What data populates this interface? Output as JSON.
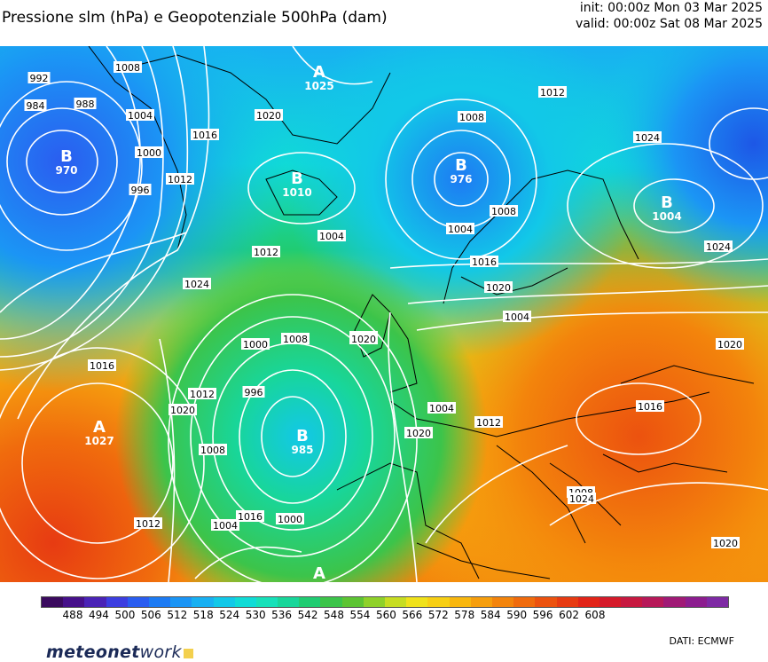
{
  "header": {
    "title": "Pressione slm (hPa) e Geopotenziale 500hPa (dam)",
    "init": "init: 00:00z Mon 03 Mar 2025",
    "valid": "valid: 00:00z Sat 08 Mar 2025"
  },
  "legend": {
    "ticks": [
      "488",
      "494",
      "500",
      "506",
      "512",
      "518",
      "524",
      "530",
      "536",
      "542",
      "548",
      "554",
      "560",
      "566",
      "572",
      "578",
      "584",
      "590",
      "596",
      "602",
      "608"
    ],
    "colors": [
      "#3a0a5e",
      "#46108a",
      "#4a23b6",
      "#3c3ee0",
      "#2a5df0",
      "#1d7bf3",
      "#1b95f5",
      "#18b0f2",
      "#12c8e8",
      "#10dbd6",
      "#17e0b9",
      "#18d69a",
      "#20cc72",
      "#3cc44a",
      "#5dc433",
      "#8fd12a",
      "#c7dd22",
      "#f0e21b",
      "#f7cf14",
      "#f8b70f",
      "#f69e0d",
      "#f3840c",
      "#f06b0d",
      "#ec520f",
      "#e73b12",
      "#e22418",
      "#d51a2a",
      "#c71940",
      "#b71959",
      "#a01a76",
      "#8c1d8f",
      "#7e2aa4"
    ]
  },
  "footer": {
    "brand_bold": "meteonet",
    "brand_light": "work",
    "source": "DATI:  ECMWF"
  },
  "map": {
    "isobar_labels": [
      "992",
      "984",
      "988",
      "1008",
      "1004",
      "1000",
      "996",
      "1012",
      "1016",
      "1020",
      "1024",
      "1016",
      "1020",
      "1012",
      "1008",
      "1004",
      "1000",
      "996",
      "1008",
      "1012",
      "1016",
      "1020",
      "1004",
      "1000",
      "1004",
      "1008",
      "1012",
      "1016",
      "1020",
      "1004",
      "1012",
      "1024",
      "1024",
      "1020",
      "1016",
      "1012",
      "1008",
      "1020",
      "1016",
      "1012",
      "1004",
      "1020",
      "1024",
      "1008"
    ],
    "centers": [
      {
        "type": "B",
        "value": "970"
      },
      {
        "type": "A",
        "value": "1025"
      },
      {
        "type": "B",
        "value": "1010"
      },
      {
        "type": "B",
        "value": "976"
      },
      {
        "type": "B",
        "value": "1004"
      },
      {
        "type": "A",
        "value": "1027"
      },
      {
        "type": "B",
        "value": "985"
      },
      {
        "type": "A",
        "value": ""
      }
    ]
  }
}
